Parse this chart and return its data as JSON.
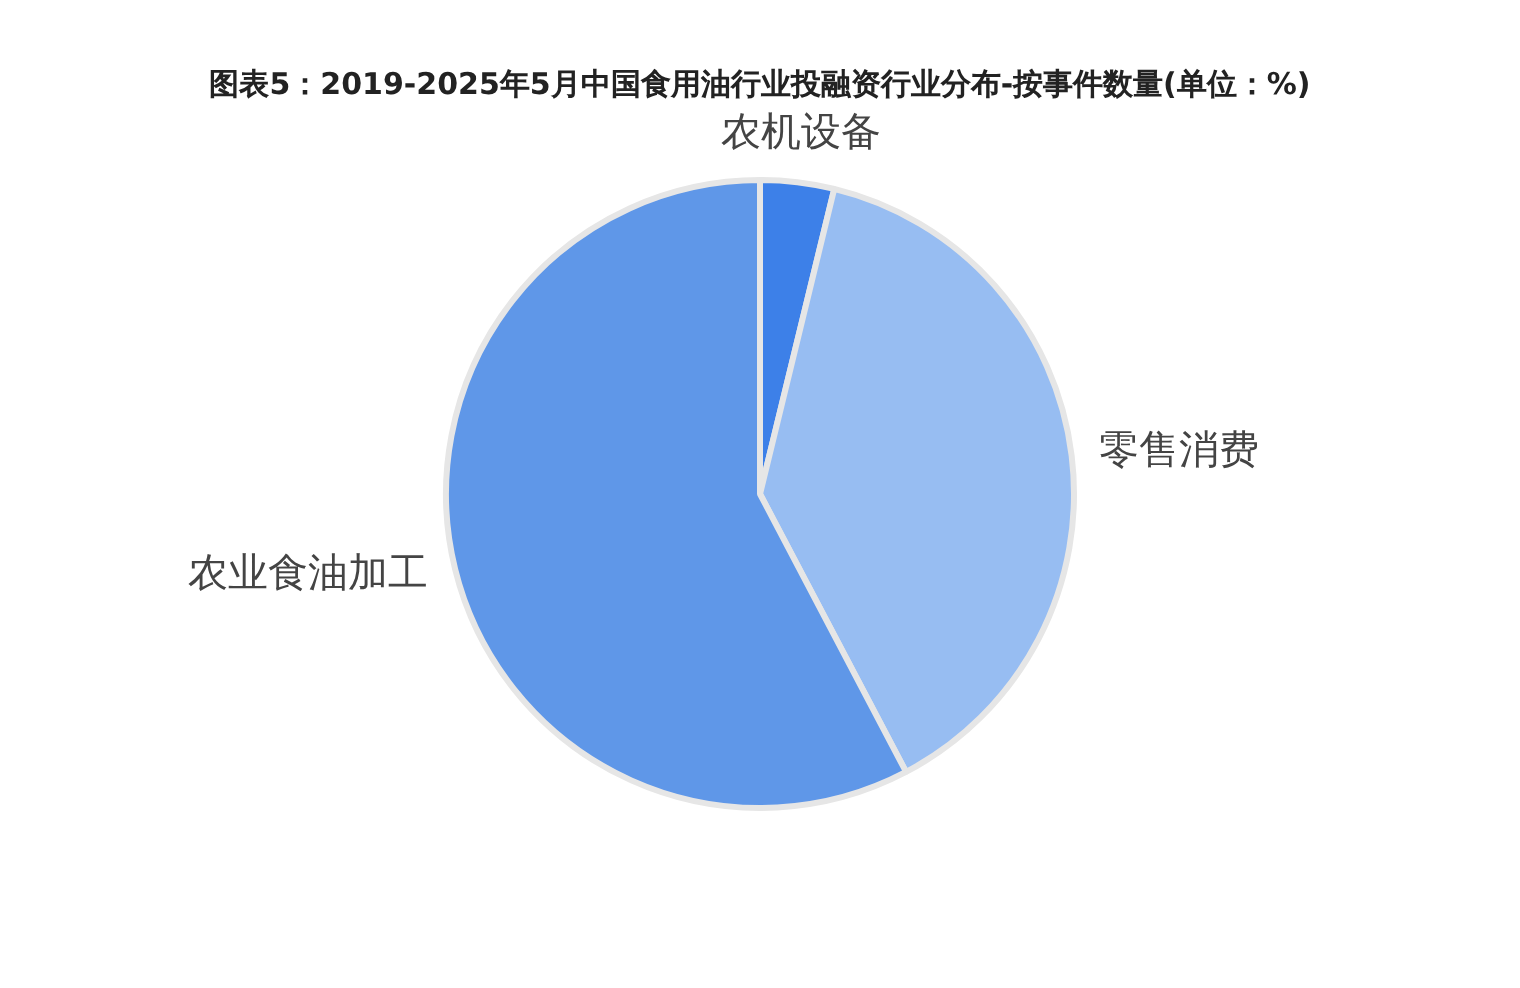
{
  "chart_data": {
    "type": "pie",
    "title": "图表5：2019-2025年5月中国食用油行业投融资行业分布-按事件数量(单位：%)",
    "categories": [
      "农机设备",
      "零售消费",
      "农业食油加工"
    ],
    "values": [
      3.8,
      38.5,
      57.7
    ],
    "colors": [
      "#3d80e8",
      "#97bdf2",
      "#5f97e8"
    ],
    "legend": false
  }
}
